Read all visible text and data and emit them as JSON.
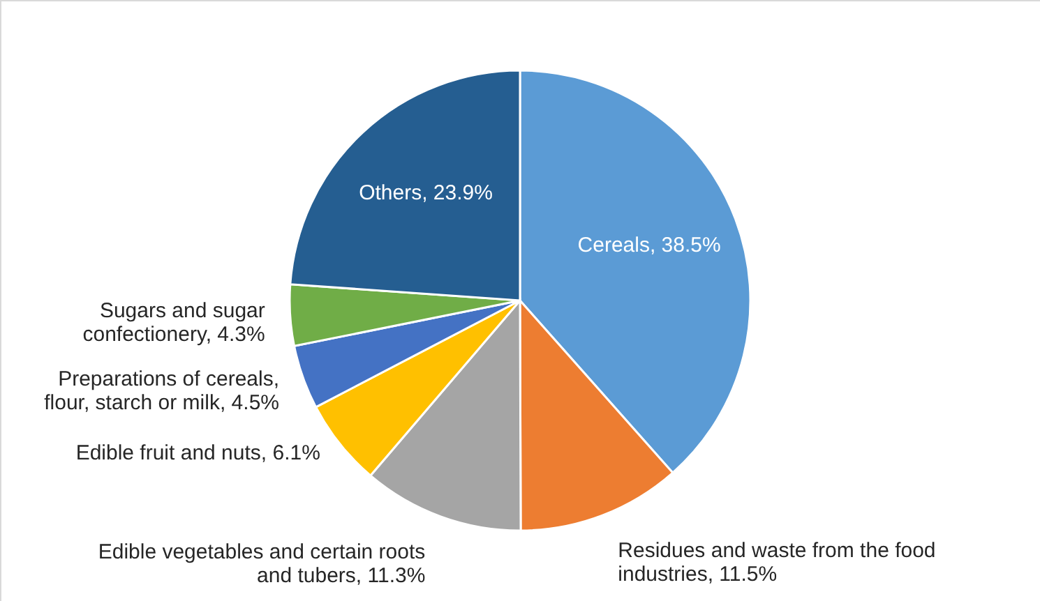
{
  "chart_data": {
    "type": "pie",
    "categories": [
      "Cereals",
      "Residues and waste from the food industries",
      "Edible vegetables and certain roots and tubers",
      "Edible fruit and nuts",
      "Preparations of cereals, flour, starch or milk",
      "Sugars and sugar confectionery",
      "Others"
    ],
    "values": [
      38.5,
      11.5,
      11.3,
      6.1,
      4.5,
      4.3,
      23.9
    ],
    "value_labels": [
      "38.5%",
      "11.5%",
      "11.3%",
      "6.1%",
      "4.5%",
      "4.3%",
      "23.9%"
    ],
    "colors": [
      "#5b9bd5",
      "#ed7d31",
      "#a5a5a5",
      "#ffc000",
      "#4472c4",
      "#70ad47",
      "#255e91"
    ]
  }
}
